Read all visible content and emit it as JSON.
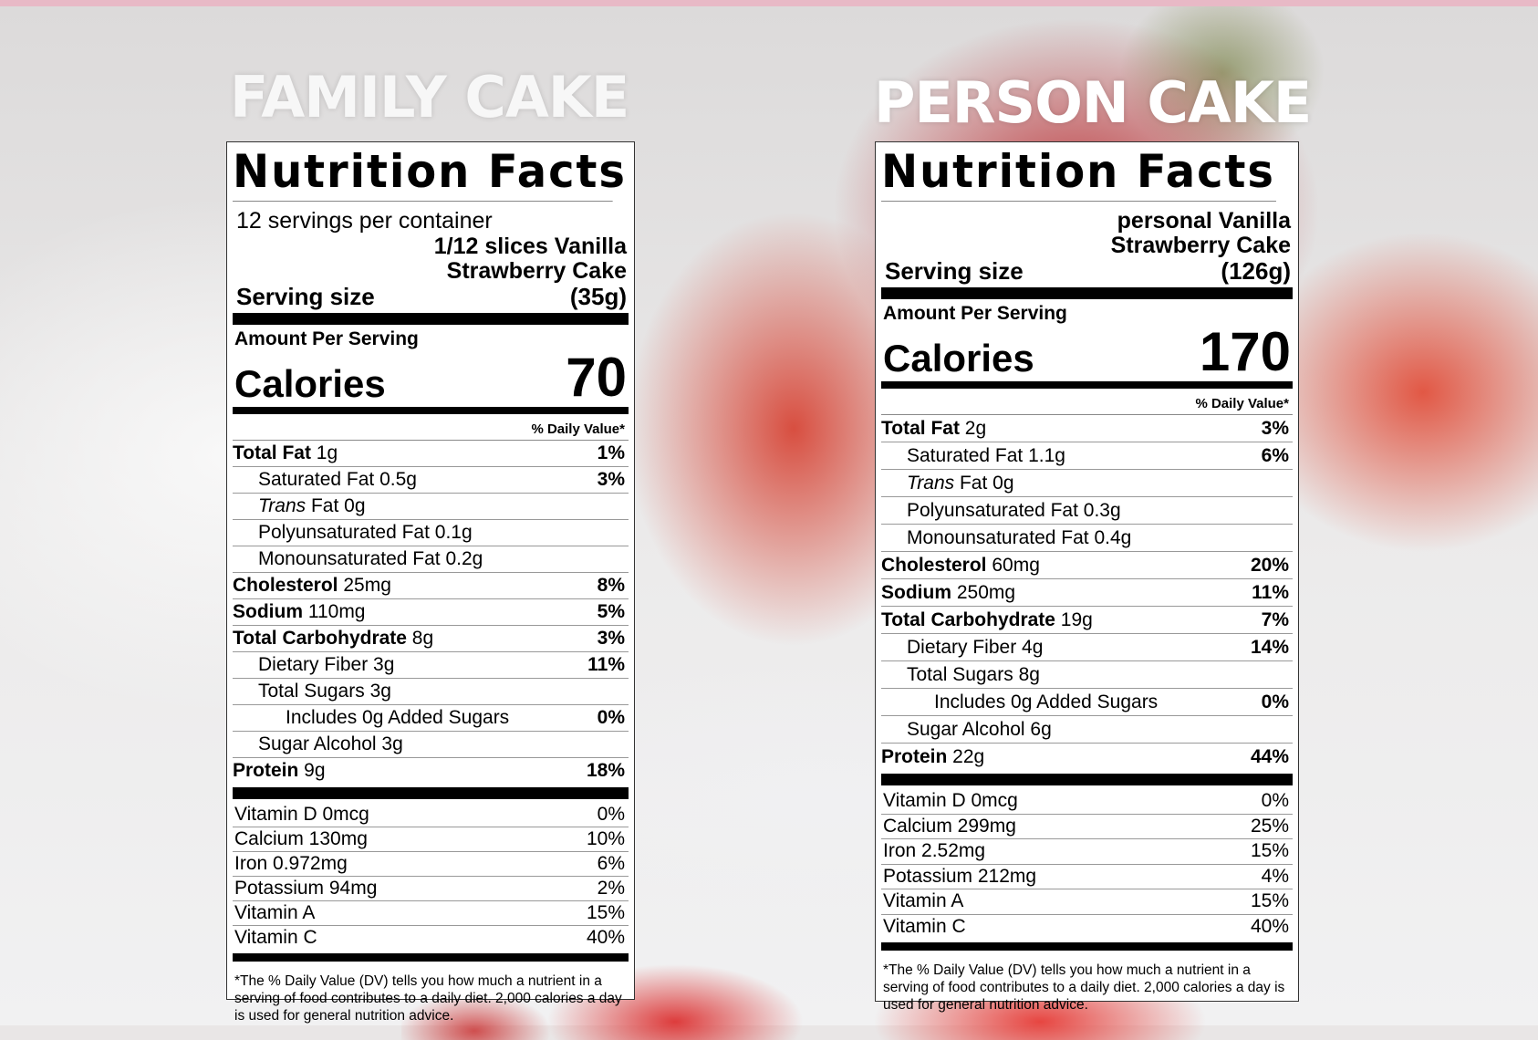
{
  "headings": {
    "left": "FAMILY CAKE",
    "right": "PERSON CAKE"
  },
  "left": {
    "title": "Nutrition Facts",
    "servings": "12 servings per container",
    "serving_desc_1": "1/12 slices Vanilla",
    "serving_desc_2": "Strawberry Cake",
    "serving_label": "Serving size",
    "serving_value": "(35g)",
    "aps": "Amount Per Serving",
    "calories_label": "Calories",
    "calories_value": "70",
    "dv_header": "% Daily Value*",
    "rows": [
      {
        "b": "Total Fat",
        "r": " 1g",
        "pct": "1%"
      },
      {
        "b": "",
        "r": "Saturated Fat 0.5g",
        "pct": "3%"
      },
      {
        "i": "Trans",
        "r": " Fat 0g",
        "pct": ""
      },
      {
        "b": "",
        "r": "Polyunsaturated Fat 0.1g",
        "pct": ""
      },
      {
        "b": "",
        "r": "Monounsaturated Fat 0.2g",
        "pct": ""
      },
      {
        "b": "Cholesterol",
        "r": " 25mg",
        "pct": "8%"
      },
      {
        "b": "Sodium",
        "r": " 110mg",
        "pct": "5%"
      },
      {
        "b": "Total Carbohydrate",
        "r": " 8g",
        "pct": "3%"
      },
      {
        "b": "",
        "r": "Dietary Fiber 3g",
        "pct": "11%"
      },
      {
        "b": "",
        "r": "Total Sugars 3g",
        "pct": ""
      },
      {
        "b": "",
        "r": "Includes 0g Added Sugars",
        "pct": "0%"
      },
      {
        "b": "",
        "r": "Sugar Alcohol 3g",
        "pct": ""
      },
      {
        "b": "Protein",
        "r": " 9g",
        "pct": "18%"
      }
    ],
    "vitamins": [
      {
        "n": "Vitamin D 0mcg",
        "p": "0%"
      },
      {
        "n": "Calcium 130mg",
        "p": "10%"
      },
      {
        "n": "Iron 0.972mg",
        "p": "6%"
      },
      {
        "n": "Potassium 94mg",
        "p": "2%"
      },
      {
        "n": "Vitamin A",
        "p": "15%"
      },
      {
        "n": "Vitamin C",
        "p": "40%"
      }
    ],
    "footnote": "*The % Daily Value (DV) tells you how much a nutrient in a serving of food contributes to a daily diet. 2,000 calories a day is used for general nutrition advice."
  },
  "right": {
    "title": "Nutrition Facts",
    "serving_desc_1": "personal Vanilla",
    "serving_desc_2": "Strawberry Cake",
    "serving_label": "Serving size",
    "serving_value": "(126g)",
    "aps": "Amount Per Serving",
    "calories_label": "Calories",
    "calories_value": "170",
    "dv_header": "% Daily Value*",
    "rows": [
      {
        "b": "Total Fat",
        "r": " 2g",
        "pct": "3%"
      },
      {
        "b": "",
        "r": "Saturated Fat 1.1g",
        "pct": "6%"
      },
      {
        "i": "Trans",
        "r": " Fat 0g",
        "pct": ""
      },
      {
        "b": "",
        "r": "Polyunsaturated Fat 0.3g",
        "pct": ""
      },
      {
        "b": "",
        "r": "Monounsaturated Fat 0.4g",
        "pct": ""
      },
      {
        "b": "Cholesterol",
        "r": " 60mg",
        "pct": "20%"
      },
      {
        "b": "Sodium",
        "r": " 250mg",
        "pct": "11%"
      },
      {
        "b": "Total Carbohydrate",
        "r": " 19g",
        "pct": "7%"
      },
      {
        "b": "",
        "r": "Dietary Fiber 4g",
        "pct": "14%"
      },
      {
        "b": "",
        "r": "Total Sugars 8g",
        "pct": ""
      },
      {
        "b": "",
        "r": "Includes 0g Added Sugars",
        "pct": "0%"
      },
      {
        "b": "",
        "r": "Sugar Alcohol 6g",
        "pct": ""
      },
      {
        "b": "Protein",
        "r": " 22g",
        "pct": "44%"
      }
    ],
    "vitamins": [
      {
        "n": "Vitamin D 0mcg",
        "p": "0%"
      },
      {
        "n": "Calcium 299mg",
        "p": "25%"
      },
      {
        "n": "Iron 2.52mg",
        "p": "15%"
      },
      {
        "n": "Potassium 212mg",
        "p": "4%"
      },
      {
        "n": "Vitamin A",
        "p": "15%"
      },
      {
        "n": "Vitamin C",
        "p": "40%"
      }
    ],
    "footnote": "*The % Daily Value (DV) tells you how much a nutrient in a serving of food contributes to a daily diet. 2,000 calories a day is used for general nutrition advice."
  },
  "colors": {
    "topbar": "#e8b9c6",
    "label_bg": "#ffffff",
    "text": "#000000"
  }
}
